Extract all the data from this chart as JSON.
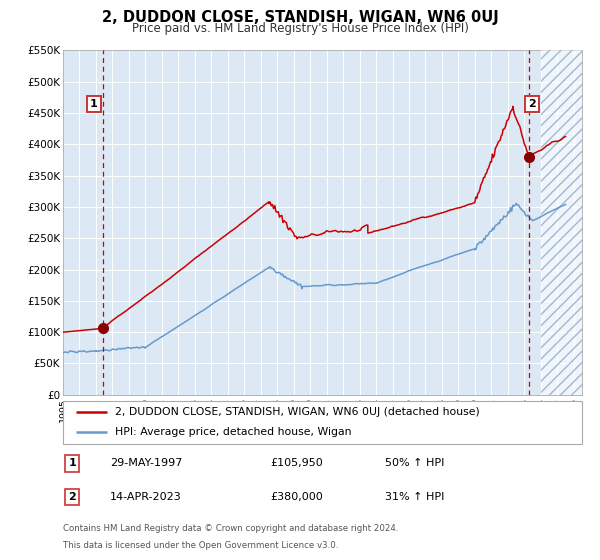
{
  "title": "2, DUDDON CLOSE, STANDISH, WIGAN, WN6 0UJ",
  "subtitle": "Price paid vs. HM Land Registry's House Price Index (HPI)",
  "bg_color": "#dce9f5",
  "red_color": "#cc0000",
  "blue_color": "#6699cc",
  "marker_color": "#880000",
  "ylim": [
    0,
    550000
  ],
  "xlim_start": 1995.0,
  "xlim_end": 2026.5,
  "yticks": [
    0,
    50000,
    100000,
    150000,
    200000,
    250000,
    300000,
    350000,
    400000,
    450000,
    500000,
    550000
  ],
  "ytick_labels": [
    "£0",
    "£50K",
    "£100K",
    "£150K",
    "£200K",
    "£250K",
    "£300K",
    "£350K",
    "£400K",
    "£450K",
    "£500K",
    "£550K"
  ],
  "xticks": [
    1995,
    1996,
    1997,
    1998,
    1999,
    2000,
    2001,
    2002,
    2003,
    2004,
    2005,
    2006,
    2007,
    2008,
    2009,
    2010,
    2011,
    2012,
    2013,
    2014,
    2015,
    2016,
    2017,
    2018,
    2019,
    2020,
    2021,
    2022,
    2023,
    2024,
    2025,
    2026
  ],
  "sale1_x": 1997.41,
  "sale1_y": 105950,
  "sale2_x": 2023.28,
  "sale2_y": 380000,
  "hatch_start": 2024.0,
  "legend_line1": "2, DUDDON CLOSE, STANDISH, WIGAN, WN6 0UJ (detached house)",
  "legend_line2": "HPI: Average price, detached house, Wigan",
  "table_row1_num": "1",
  "table_row1_date": "29-MAY-1997",
  "table_row1_price": "£105,950",
  "table_row1_hpi": "50% ↑ HPI",
  "table_row2_num": "2",
  "table_row2_date": "14-APR-2023",
  "table_row2_price": "£380,000",
  "table_row2_hpi": "31% ↑ HPI",
  "footnote1": "Contains HM Land Registry data © Crown copyright and database right 2024.",
  "footnote2": "This data is licensed under the Open Government Licence v3.0."
}
